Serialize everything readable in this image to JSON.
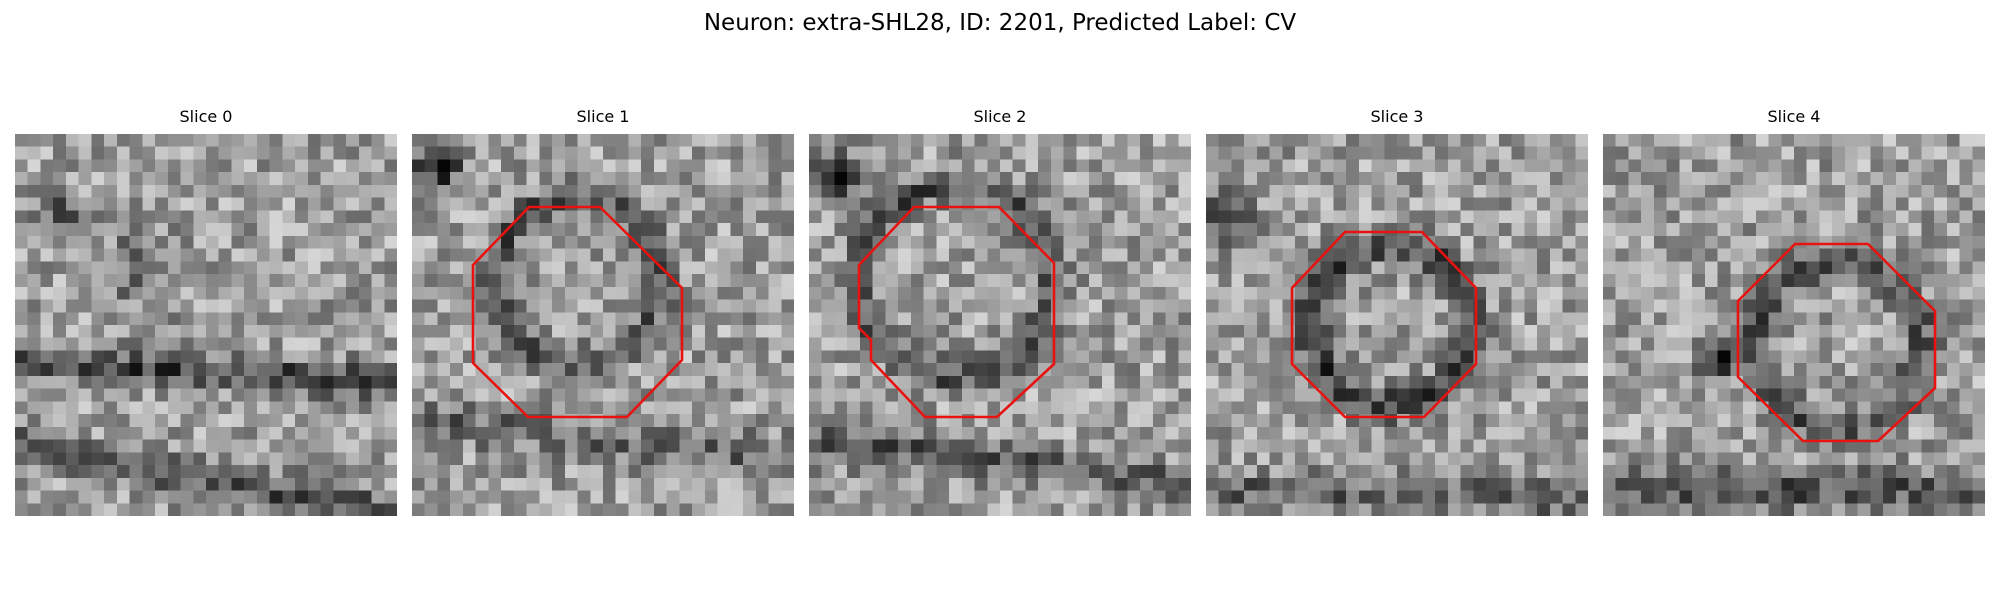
{
  "figure": {
    "title": "Neuron: extra-SHL28, ID: 2201, Predicted Label: CV"
  },
  "panels": [
    {
      "label": "Slice 0",
      "outline": false
    },
    {
      "label": "Slice 1",
      "outline": true
    },
    {
      "label": "Slice 2",
      "outline": true
    },
    {
      "label": "Slice 3",
      "outline": true
    },
    {
      "label": "Slice 4",
      "outline": true
    }
  ],
  "colors": {
    "outline": "#e8120f",
    "background": "#ffffff"
  }
}
